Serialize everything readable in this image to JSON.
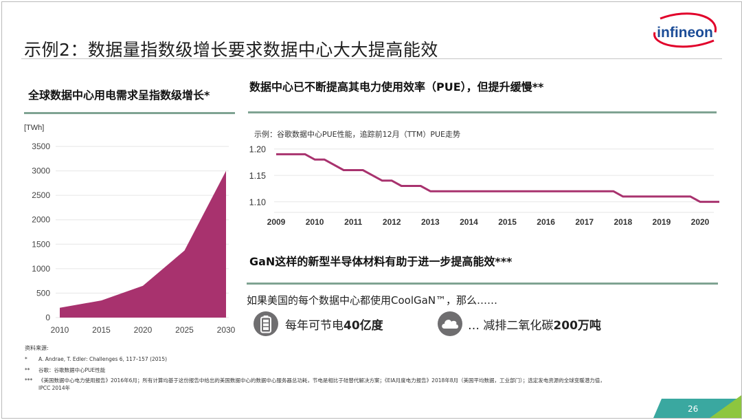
{
  "title": "示例2：数据量指数级增长要求数据中心大大提高能效",
  "logo_text": "infineon",
  "left_panel": {
    "heading": "全球数据中心用电需求呈指数级增长*",
    "unit_label": "[TWh]"
  },
  "right_panel": {
    "heading": "数据中心已不断提高其电力使用效率（PUE），但提升缓慢**",
    "subtitle": "示例：谷歌数据中心PUE性能，追踪前12月（TTM）PUE走势"
  },
  "gan_section": {
    "heading": "GaN这样的新型半导体材料有助于进一步提高能效***",
    "text": "如果美国的每个数据中心都使用CoolGaN™，那么……",
    "benefit1_icon": "battery-icon",
    "benefit1_prefix": "每年可节电",
    "benefit1_value": "40亿度",
    "benefit2_icon": "cloud-icon",
    "benefit2_prefix": "… 减排二氧化碳",
    "benefit2_value": "200万吨"
  },
  "sources": {
    "heading": "资料来源:",
    "items": [
      {
        "marker": "*",
        "text": "A. Andrae, T. Edler: Challenges 6, 117–157 (2015)"
      },
      {
        "marker": "**",
        "text": "谷歌：谷歌数据中心PUE性能"
      },
      {
        "marker": "***",
        "text": "《美国数据中心电力使用报告》2016年6月；所有计算均基于这份报告中给出的美国数据中心的数据中心服务器总功耗，节电是相比于硅替代解决方案；《EIA月度电力报告》2018年8月（美国平均数据，工业部门）；选定发电资源的全球变暖潜力值，"
      },
      {
        "marker": "",
        "text": "IPCC 2014年"
      }
    ]
  },
  "page_number": "26",
  "colors": {
    "accent": "#a8326e",
    "rule": "#7fa392",
    "corner_green": "#8dc63f",
    "corner_teal": "#3aa8a0"
  },
  "chart_data": [
    {
      "type": "area",
      "title": "全球数据中心用电需求呈指数级增长*",
      "ylabel": "[TWh]",
      "x": [
        2010,
        2015,
        2020,
        2025,
        2030
      ],
      "values": [
        200,
        350,
        650,
        1370,
        3000
      ],
      "xticks": [
        "2010",
        "2015",
        "2020",
        "2025",
        "2030"
      ],
      "yticks": [
        "0",
        "500",
        "1000",
        "1500",
        "2000",
        "2500",
        "3000",
        "3500"
      ],
      "ylim": [
        0,
        3500
      ],
      "grid": true,
      "color": "#a8326e"
    },
    {
      "type": "line",
      "title": "数据中心已不断提高其电力使用效率（PUE），但提升缓慢**",
      "subtitle": "示例：谷歌数据中心PUE性能，追踪前12月（TTM）PUE走势",
      "x": [
        2009.0,
        2009.75,
        2010.0,
        2010.25,
        2010.75,
        2011.0,
        2011.25,
        2011.75,
        2012.0,
        2012.25,
        2012.5,
        2012.75,
        2013.0,
        2017.75,
        2018.0,
        2019.75,
        2020.0,
        2020.5
      ],
      "values": [
        1.19,
        1.19,
        1.18,
        1.18,
        1.16,
        1.16,
        1.16,
        1.14,
        1.14,
        1.13,
        1.13,
        1.13,
        1.12,
        1.12,
        1.11,
        1.11,
        1.1,
        1.1
      ],
      "xticks": [
        "2009",
        "2010",
        "2011",
        "2012",
        "2013",
        "2014",
        "2015",
        "2016",
        "2017",
        "2018",
        "2019",
        "2020"
      ],
      "yticks": [
        "1.10",
        "1.15",
        "1.20"
      ],
      "xlim": [
        2009,
        2020.5
      ],
      "ylim": [
        1.08,
        1.21
      ],
      "grid": true,
      "color": "#a8326e"
    }
  ]
}
